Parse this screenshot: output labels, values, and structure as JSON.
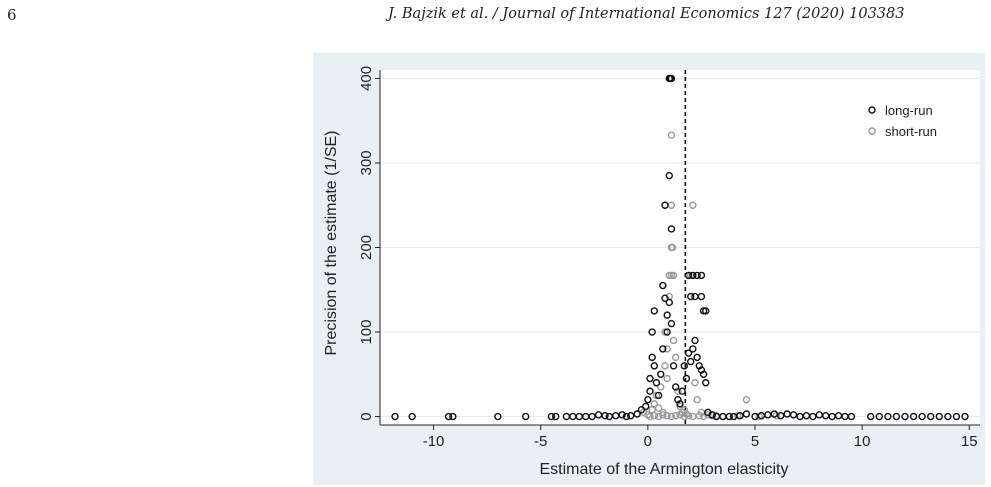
{
  "header": {
    "page_number": "6",
    "running_title": "J. Bajzik et al. / Journal of International Economics 127 (2020) 103383"
  },
  "colors": {
    "panel_background": "#e9f0f4",
    "plot_background": "#ffffff",
    "gridline": "#e3eaee",
    "long_run": "#111111",
    "short_run": "#9a9a9a"
  },
  "chart_data": {
    "type": "scatter",
    "title": "",
    "xlabel": "Estimate of the Armington elasticity",
    "ylabel": "Precision of the estimate (1/SE)",
    "xlim": [
      -12.5,
      15.5
    ],
    "ylim": [
      -10,
      410
    ],
    "xticks": [
      -10,
      -5,
      0,
      5,
      10,
      15
    ],
    "yticks": [
      0,
      100,
      200,
      300,
      400
    ],
    "grid": true,
    "legend_position": "top-right",
    "reference_line": {
      "x": 1.75,
      "style": "dashed"
    },
    "series": [
      {
        "name": "long-run",
        "color": "#111111",
        "points": [
          [
            -11.8,
            0
          ],
          [
            -11.0,
            0
          ],
          [
            -9.3,
            0
          ],
          [
            -9.1,
            0
          ],
          [
            -7.0,
            0
          ],
          [
            -5.7,
            0
          ],
          [
            -4.5,
            0
          ],
          [
            -4.3,
            0
          ],
          [
            -3.8,
            0
          ],
          [
            -3.5,
            0
          ],
          [
            -3.2,
            0
          ],
          [
            -2.9,
            0
          ],
          [
            -2.6,
            0
          ],
          [
            -2.3,
            2
          ],
          [
            -2.0,
            1
          ],
          [
            -1.8,
            0
          ],
          [
            -1.5,
            1
          ],
          [
            -1.2,
            2
          ],
          [
            -1.0,
            0
          ],
          [
            -0.8,
            1
          ],
          [
            -0.5,
            3
          ],
          [
            -0.3,
            8
          ],
          [
            -0.1,
            12
          ],
          [
            0.0,
            20
          ],
          [
            0.1,
            30
          ],
          [
            0.1,
            45
          ],
          [
            0.2,
            70
          ],
          [
            0.2,
            100
          ],
          [
            0.3,
            125
          ],
          [
            0.3,
            60
          ],
          [
            0.4,
            40
          ],
          [
            0.5,
            25
          ],
          [
            0.6,
            50
          ],
          [
            0.7,
            80
          ],
          [
            0.7,
            155
          ],
          [
            0.8,
            140
          ],
          [
            0.8,
            250
          ],
          [
            0.9,
            120
          ],
          [
            0.9,
            100
          ],
          [
            1.0,
            400
          ],
          [
            1.05,
            400
          ],
          [
            1.1,
            400
          ],
          [
            1.0,
            285
          ],
          [
            1.1,
            222
          ],
          [
            1.0,
            135
          ],
          [
            1.1,
            110
          ],
          [
            1.2,
            60
          ],
          [
            1.3,
            35
          ],
          [
            1.4,
            20
          ],
          [
            1.5,
            15
          ],
          [
            1.6,
            30
          ],
          [
            1.7,
            60
          ],
          [
            1.8,
            45
          ],
          [
            1.9,
            75
          ],
          [
            2.0,
            65
          ],
          [
            2.1,
            80
          ],
          [
            2.2,
            90
          ],
          [
            2.3,
            70
          ],
          [
            2.4,
            60
          ],
          [
            2.5,
            55
          ],
          [
            2.6,
            50
          ],
          [
            2.7,
            40
          ],
          [
            1.9,
            167
          ],
          [
            2.1,
            167
          ],
          [
            2.3,
            167
          ],
          [
            2.5,
            167
          ],
          [
            2.0,
            142
          ],
          [
            2.2,
            142
          ],
          [
            2.5,
            142
          ],
          [
            2.6,
            125
          ],
          [
            2.7,
            125
          ],
          [
            2.8,
            5
          ],
          [
            3.0,
            2
          ],
          [
            3.2,
            0
          ],
          [
            3.5,
            0
          ],
          [
            3.8,
            0
          ],
          [
            4.0,
            0
          ],
          [
            4.3,
            1
          ],
          [
            4.6,
            3
          ],
          [
            5.0,
            0
          ],
          [
            5.3,
            1
          ],
          [
            5.6,
            2
          ],
          [
            5.9,
            3
          ],
          [
            6.2,
            1
          ],
          [
            6.5,
            3
          ],
          [
            6.8,
            2
          ],
          [
            7.1,
            0
          ],
          [
            7.4,
            1
          ],
          [
            7.7,
            0
          ],
          [
            8.0,
            2
          ],
          [
            8.3,
            1
          ],
          [
            8.6,
            0
          ],
          [
            8.9,
            1
          ],
          [
            9.2,
            0
          ],
          [
            9.5,
            0
          ],
          [
            10.4,
            0
          ],
          [
            10.8,
            0
          ],
          [
            11.2,
            0
          ],
          [
            11.6,
            0
          ],
          [
            12.0,
            0
          ],
          [
            12.4,
            0
          ],
          [
            12.8,
            0
          ],
          [
            13.2,
            0
          ],
          [
            13.6,
            0
          ],
          [
            14.0,
            0
          ],
          [
            14.4,
            0
          ],
          [
            14.8,
            0
          ]
        ]
      },
      {
        "name": "short-run",
        "color": "#9a9a9a",
        "points": [
          [
            -0.2,
            5
          ],
          [
            0.0,
            2
          ],
          [
            0.2,
            8
          ],
          [
            0.3,
            15
          ],
          [
            0.4,
            25
          ],
          [
            0.5,
            10
          ],
          [
            0.6,
            35
          ],
          [
            0.7,
            5
          ],
          [
            0.8,
            60
          ],
          [
            0.8,
            100
          ],
          [
            0.9,
            45
          ],
          [
            0.9,
            80
          ],
          [
            1.0,
            167
          ],
          [
            1.0,
            142
          ],
          [
            1.1,
            167
          ],
          [
            1.1,
            200
          ],
          [
            1.15,
            200
          ],
          [
            1.1,
            250
          ],
          [
            1.1,
            333
          ],
          [
            1.2,
            167
          ],
          [
            1.2,
            90
          ],
          [
            1.3,
            70
          ],
          [
            1.4,
            30
          ],
          [
            1.5,
            12
          ],
          [
            1.6,
            5
          ],
          [
            1.7,
            8
          ],
          [
            1.8,
            3
          ],
          [
            2.0,
            167
          ],
          [
            2.1,
            250
          ],
          [
            2.2,
            40
          ],
          [
            2.3,
            20
          ],
          [
            2.5,
            5
          ],
          [
            2.8,
            2
          ],
          [
            3.2,
            1
          ],
          [
            3.8,
            0
          ],
          [
            4.2,
            1
          ],
          [
            4.6,
            20
          ],
          [
            5.2,
            0
          ],
          [
            6.0,
            1
          ],
          [
            0.1,
            0
          ],
          [
            0.3,
            1
          ],
          [
            0.5,
            0
          ],
          [
            0.7,
            2
          ],
          [
            0.9,
            1
          ],
          [
            1.1,
            0
          ],
          [
            1.3,
            1
          ],
          [
            1.5,
            2
          ],
          [
            1.7,
            0
          ],
          [
            1.9,
            1
          ],
          [
            2.1,
            0
          ],
          [
            2.4,
            1
          ],
          [
            2.6,
            0
          ],
          [
            3.0,
            1
          ],
          [
            3.5,
            0
          ]
        ]
      }
    ]
  }
}
